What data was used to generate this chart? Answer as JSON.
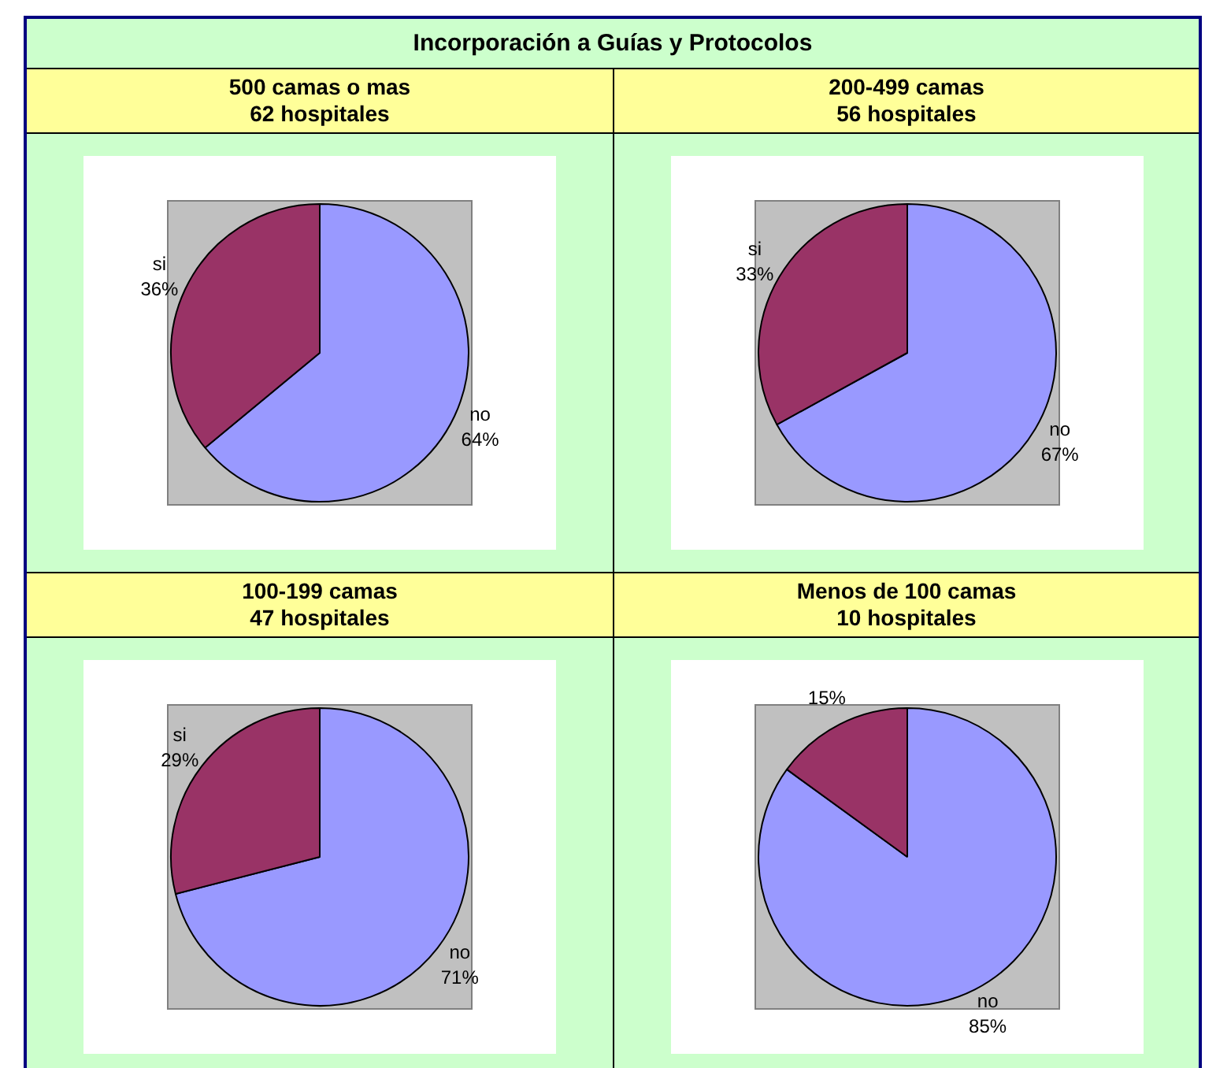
{
  "chart_data": [
    {
      "type": "other",
      "title": "Incorporación a Guías y Protocolos"
    },
    {
      "type": "pie",
      "title": "500 camas o mas",
      "subtitle": "62 hospitales",
      "categories": [
        "no",
        "si"
      ],
      "values": [
        64,
        36
      ],
      "colors": [
        "#9999ff",
        "#993366"
      ],
      "value_labels": [
        "64%",
        "36%"
      ]
    },
    {
      "type": "pie",
      "title": "200-499 camas",
      "subtitle": "56 hospitales",
      "categories": [
        "no",
        "si"
      ],
      "values": [
        67,
        33
      ],
      "colors": [
        "#9999ff",
        "#993366"
      ],
      "value_labels": [
        "67%",
        "33%"
      ]
    },
    {
      "type": "pie",
      "title": "100-199 camas",
      "subtitle": "47 hospitales",
      "categories": [
        "no",
        "si"
      ],
      "values": [
        71,
        29
      ],
      "colors": [
        "#9999ff",
        "#993366"
      ],
      "value_labels": [
        "71%",
        "29%"
      ]
    },
    {
      "type": "pie",
      "title": "Menos de 100 camas",
      "subtitle": "10 hospitales",
      "categories": [
        "no",
        null
      ],
      "values": [
        85,
        15
      ],
      "colors": [
        "#9999ff",
        "#993366"
      ],
      "value_labels": [
        "85%",
        "15%"
      ]
    }
  ]
}
